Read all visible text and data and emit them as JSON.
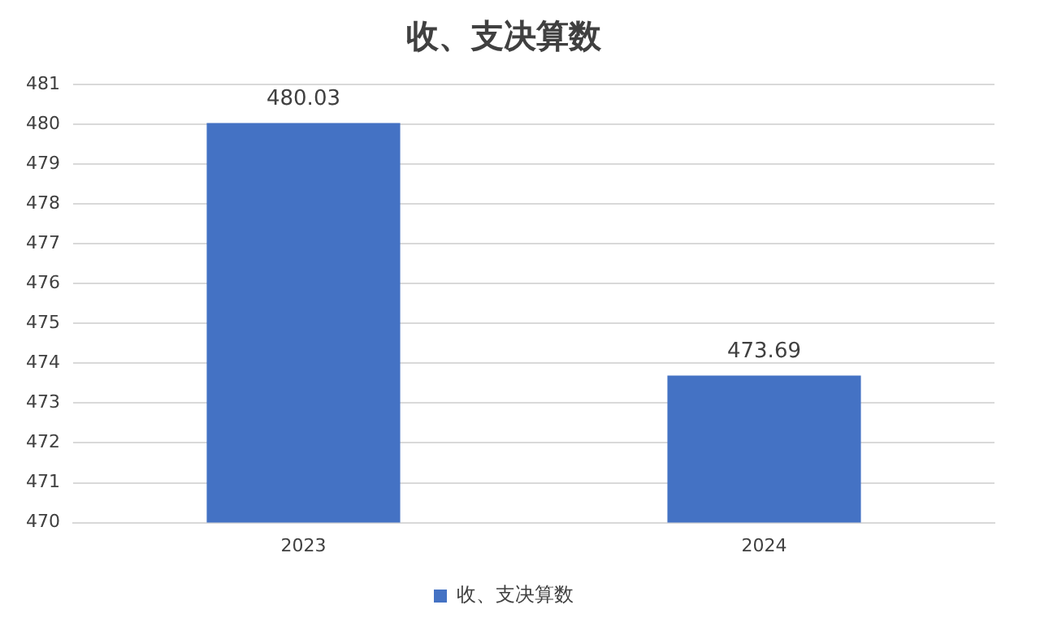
{
  "chart_data": {
    "type": "bar",
    "title": "收、支决算数",
    "categories": [
      "2023",
      "2024"
    ],
    "series": [
      {
        "name": "收、支决算数",
        "color": "#4472c4",
        "values": [
          480.03,
          473.69
        ]
      }
    ],
    "ylim": [
      470,
      481
    ],
    "yticks": [
      470,
      471,
      472,
      473,
      474,
      475,
      476,
      477,
      478,
      479,
      480,
      481
    ],
    "grid": "y",
    "legend": "bottom",
    "data_labels": true
  }
}
